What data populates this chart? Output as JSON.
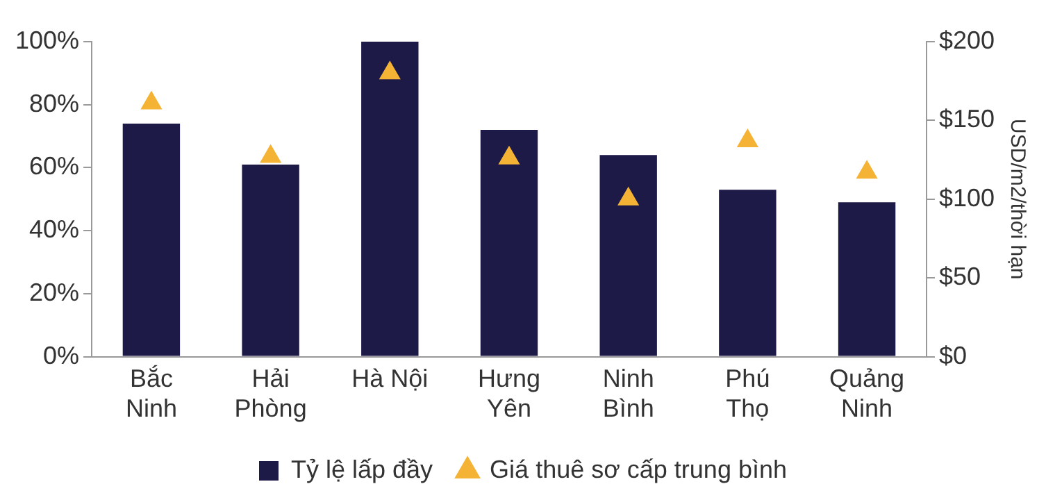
{
  "chart_data": {
    "type": "bar",
    "categories": [
      "Bắc\nNinh",
      "Hải\nPhòng",
      "Hà Nội",
      "Hưng\nYên",
      "Ninh\nBình",
      "Phú\nThọ",
      "Quảng\nNinh"
    ],
    "series": [
      {
        "name": "Tỷ lệ lấp đầy",
        "color": "#1e1a48",
        "values": [
          74,
          61,
          100,
          72,
          64,
          53,
          49
        ]
      },
      {
        "name": "Giá thuê sơ cấp trung bình",
        "type": "scatter",
        "axis": "y2",
        "marker": "triangle",
        "color": "#f5b335",
        "values": [
          161,
          127,
          180,
          126,
          100,
          137,
          117
        ]
      }
    ],
    "ylim": [
      0,
      100
    ],
    "yticks": [
      {
        "value": 0,
        "label": "0%"
      },
      {
        "value": 20,
        "label": "20%"
      },
      {
        "value": 40,
        "label": "40%"
      },
      {
        "value": 60,
        "label": "60%"
      },
      {
        "value": 80,
        "label": "80%"
      },
      {
        "value": 100,
        "label": "100%"
      }
    ],
    "y2lim": [
      0,
      200
    ],
    "y2ticks": [
      {
        "value": 0,
        "label": "$0"
      },
      {
        "value": 50,
        "label": "$50"
      },
      {
        "value": 100,
        "label": "$100"
      },
      {
        "value": 150,
        "label": "$150"
      },
      {
        "value": 200,
        "label": "$200"
      }
    ],
    "y2label": "USD/m2/thời hạn",
    "grid": false,
    "legend": "bottom"
  }
}
